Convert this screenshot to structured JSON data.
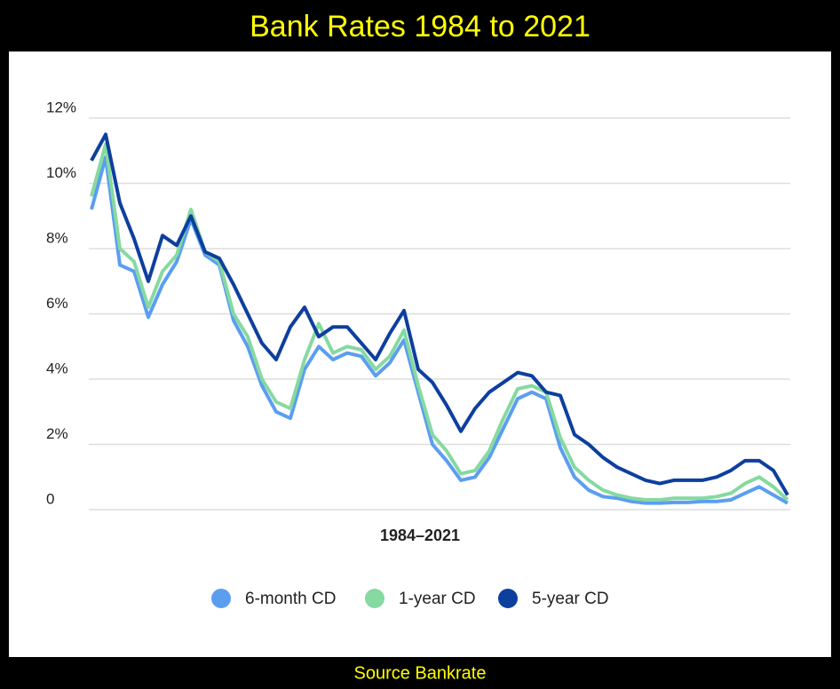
{
  "chart_data": {
    "type": "line",
    "title": "Bank Rates 1984 to 2021",
    "x_label": "1984–2021",
    "source": "Source Bankrate",
    "categories": [
      null,
      null,
      null,
      null,
      null,
      null,
      null,
      null,
      null,
      null,
      null,
      null,
      null,
      null,
      null,
      null,
      null,
      null,
      null,
      null,
      null,
      null,
      null,
      null,
      null,
      null,
      null,
      null,
      null,
      null,
      null,
      null,
      null,
      null,
      null,
      null,
      null,
      null,
      null,
      null,
      null,
      null,
      null,
      null,
      null,
      null,
      null,
      null,
      null,
      null
    ],
    "series": [
      {
        "name": "6-month CD",
        "color": "#5b9ef0",
        "values": [
          9.2,
          10.8,
          7.5,
          7.3,
          5.9,
          6.9,
          7.6,
          8.9,
          7.8,
          7.5,
          5.8,
          5.0,
          3.8,
          3.0,
          2.8,
          4.3,
          5.0,
          4.6,
          4.8,
          4.7,
          4.1,
          4.5,
          5.2,
          3.6,
          2.0,
          1.5,
          0.9,
          1.0,
          1.6,
          2.5,
          3.4,
          3.6,
          3.4,
          1.9,
          1.0,
          0.6,
          0.4,
          0.35,
          0.25,
          0.2,
          0.2,
          0.22,
          0.22,
          0.25,
          0.25,
          0.3,
          0.5,
          0.7,
          0.45,
          0.2
        ]
      },
      {
        "name": "1-year CD",
        "color": "#86d9a0",
        "values": [
          9.6,
          11.2,
          8.0,
          7.6,
          6.2,
          7.3,
          7.8,
          9.2,
          7.9,
          7.6,
          6.0,
          5.3,
          4.0,
          3.3,
          3.1,
          4.6,
          5.7,
          4.8,
          5.0,
          4.9,
          4.3,
          4.7,
          5.5,
          3.8,
          2.3,
          1.8,
          1.1,
          1.2,
          1.8,
          2.8,
          3.7,
          3.8,
          3.6,
          2.2,
          1.3,
          0.9,
          0.6,
          0.45,
          0.35,
          0.3,
          0.3,
          0.35,
          0.35,
          0.35,
          0.4,
          0.5,
          0.8,
          1.0,
          0.7,
          0.3
        ]
      },
      {
        "name": "5-year CD",
        "color": "#0d3f9e",
        "values": [
          10.7,
          11.5,
          9.4,
          8.3,
          7.0,
          8.4,
          8.1,
          9.0,
          7.9,
          7.7,
          6.9,
          6.0,
          5.1,
          4.6,
          5.6,
          6.2,
          5.3,
          5.6,
          5.6,
          5.1,
          4.6,
          5.4,
          6.1,
          4.3,
          3.9,
          3.2,
          2.4,
          3.1,
          3.6,
          3.9,
          4.2,
          4.1,
          3.6,
          3.5,
          2.3,
          2.0,
          1.6,
          1.3,
          1.1,
          0.9,
          0.8,
          0.9,
          0.9,
          0.9,
          1.0,
          1.2,
          1.5,
          1.5,
          1.2,
          0.45
        ]
      }
    ],
    "ylim": [
      0,
      12
    ],
    "yticks": [
      0,
      {
        "value": 2,
        "label": "2%"
      },
      {
        "value": 4,
        "label": "4%"
      },
      {
        "value": 6,
        "label": "6%"
      },
      {
        "value": 8,
        "label": "8%"
      },
      {
        "value": 10,
        "label": "10%"
      },
      {
        "value": 12,
        "label": "12%"
      }
    ],
    "grid": true,
    "legend": "bottom"
  }
}
